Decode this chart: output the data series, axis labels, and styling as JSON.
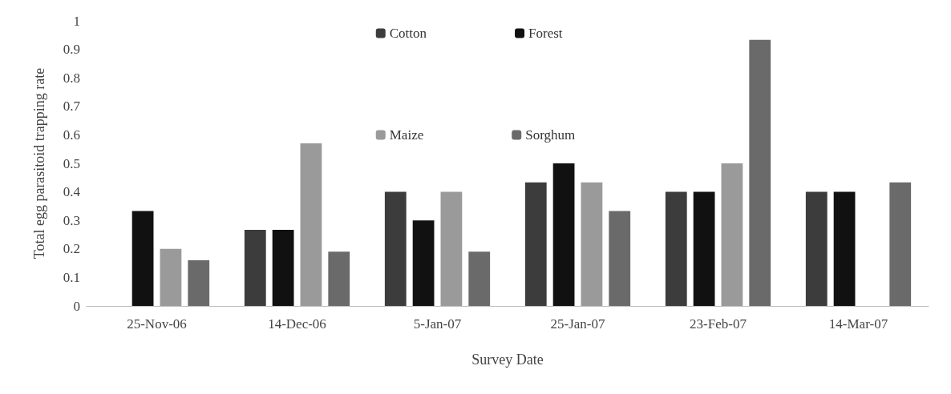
{
  "chart_data": {
    "type": "bar",
    "xlabel": "Survey Date",
    "ylabel": "Total egg parasitoid trapping rate",
    "categories": [
      "25-Nov-06",
      "14-Dec-06",
      "5-Jan-07",
      "25-Jan-07",
      "23-Feb-07",
      "14-Mar-07"
    ],
    "series": [
      {
        "name": "Cotton",
        "color": "#3c3c3c",
        "values": [
          0,
          0.267,
          0.4,
          0.433,
          0.4,
          0.4
        ]
      },
      {
        "name": "Forest",
        "color": "#111111",
        "values": [
          0.333,
          0.267,
          0.3,
          0.5,
          0.4,
          0.4
        ]
      },
      {
        "name": "Maize",
        "color": "#9a9a9a",
        "values": [
          0.2,
          0.57,
          0.4,
          0.433,
          0.5,
          0
        ]
      },
      {
        "name": "Sorghum",
        "color": "#6a6a6a",
        "values": [
          0.16,
          0.19,
          0.19,
          0.333,
          0.933,
          0.433
        ]
      }
    ],
    "ylim": [
      0,
      1
    ],
    "yticks": [
      0,
      0.1,
      0.2,
      0.3,
      0.4,
      0.5,
      0.6,
      0.7,
      0.8,
      0.9,
      1
    ],
    "grid": false,
    "legend": "top"
  }
}
